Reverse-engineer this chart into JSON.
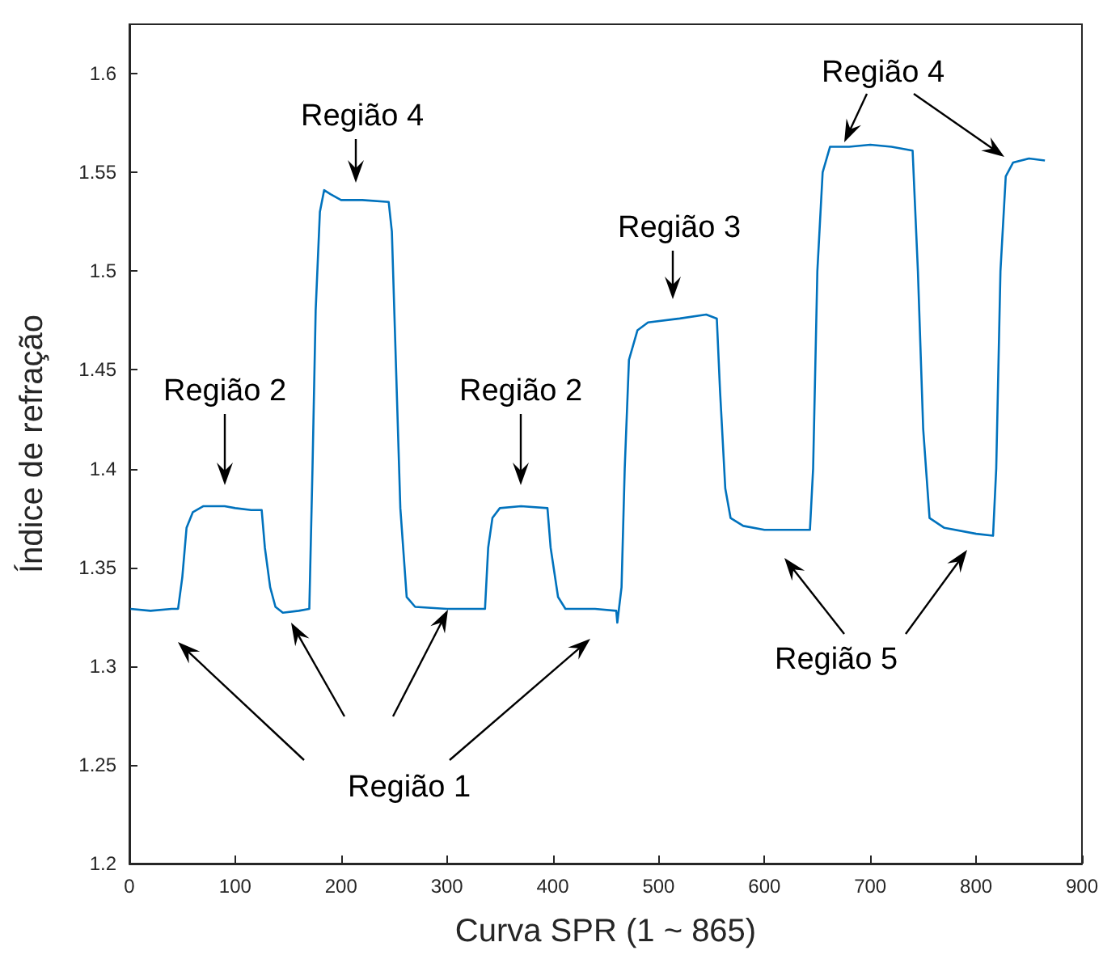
{
  "chart_data": {
    "type": "line",
    "xlabel": "Curva SPR (1 ~ 865)",
    "ylabel": "Índice de refração",
    "xlim": [
      0,
      900
    ],
    "xticks": [
      0,
      100,
      200,
      300,
      400,
      500,
      600,
      700,
      800,
      900
    ],
    "ylim": [
      1.2,
      1.625
    ],
    "yticks": [
      1.2,
      1.25,
      1.3,
      1.35,
      1.4,
      1.45,
      1.5,
      1.55,
      1.6
    ],
    "grid": false,
    "marker": "none",
    "line_style": "solid",
    "series": [
      {
        "color": "#0072bd",
        "x": [
          1,
          20,
          40,
          46,
          50,
          54,
          60,
          70,
          90,
          100,
          115,
          125,
          128,
          133,
          138,
          145,
          160,
          170,
          173,
          176,
          180,
          184,
          190,
          200,
          220,
          245,
          248,
          252,
          256,
          262,
          270,
          300,
          336,
          339,
          343,
          350,
          370,
          395,
          398,
          405,
          412,
          440,
          460,
          461,
          465,
          468,
          472,
          480,
          490,
          520,
          545,
          555,
          558,
          563,
          568,
          580,
          600,
          620,
          643,
          646,
          650,
          655,
          662,
          680,
          700,
          720,
          740,
          745,
          750,
          756,
          770,
          800,
          816,
          819,
          823,
          828,
          835,
          850,
          865
        ],
        "values": [
          1.329,
          1.328,
          1.329,
          1.329,
          1.345,
          1.37,
          1.378,
          1.381,
          1.381,
          1.38,
          1.379,
          1.379,
          1.36,
          1.34,
          1.33,
          1.327,
          1.328,
          1.329,
          1.4,
          1.48,
          1.53,
          1.541,
          1.539,
          1.536,
          1.536,
          1.535,
          1.52,
          1.45,
          1.38,
          1.335,
          1.33,
          1.329,
          1.329,
          1.36,
          1.375,
          1.38,
          1.381,
          1.38,
          1.36,
          1.335,
          1.329,
          1.329,
          1.328,
          1.322,
          1.34,
          1.4,
          1.455,
          1.47,
          1.474,
          1.476,
          1.478,
          1.476,
          1.44,
          1.39,
          1.375,
          1.371,
          1.369,
          1.369,
          1.369,
          1.4,
          1.5,
          1.55,
          1.563,
          1.563,
          1.564,
          1.563,
          1.561,
          1.5,
          1.42,
          1.375,
          1.37,
          1.367,
          1.366,
          1.4,
          1.5,
          1.548,
          1.555,
          1.557,
          1.556
        ]
      }
    ],
    "annotations": [
      "Região 2",
      "Região 4",
      "Região 2",
      "Região 3",
      "Região 4",
      "Região 1",
      "Região 5"
    ]
  }
}
